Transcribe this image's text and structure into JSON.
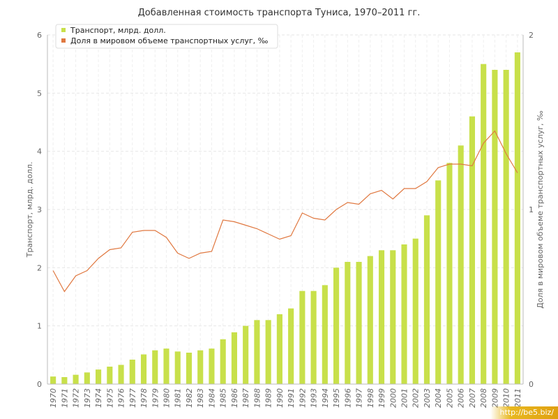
{
  "chart_data": {
    "type": "bar",
    "title": "Добавленная стоимость транспорта Туниса, 1970–2011 гг.",
    "ylabel": "Транспорт, млрд. долл.",
    "ylabel_right": "Доля в мировом объеме транспортных услуг, ‰",
    "ylim": [
      0,
      6
    ],
    "ylim_right": [
      0,
      2
    ],
    "yticks": [
      "0",
      "1",
      "2",
      "3",
      "4",
      "5",
      "6"
    ],
    "yticks_right": [
      "0",
      "1",
      "2"
    ],
    "grid": true,
    "legend_position": "top-left",
    "categories": [
      "1970",
      "1971",
      "1972",
      "1973",
      "1974",
      "1975",
      "1976",
      "1977",
      "1978",
      "1979",
      "1980",
      "1981",
      "1982",
      "1983",
      "1984",
      "1985",
      "1986",
      "1987",
      "1988",
      "1989",
      "1990",
      "1991",
      "1992",
      "1993",
      "1994",
      "1995",
      "1996",
      "1997",
      "1998",
      "1999",
      "2000",
      "2001",
      "2002",
      "2003",
      "2004",
      "2005",
      "2006",
      "2007",
      "2008",
      "2009",
      "2010",
      "2011"
    ],
    "series": [
      {
        "name": "Транспорт, млрд. долл.",
        "type": "bar",
        "axis": "left",
        "color": "#c8e04a",
        "values": [
          0.13,
          0.12,
          0.16,
          0.2,
          0.25,
          0.3,
          0.33,
          0.42,
          0.51,
          0.58,
          0.61,
          0.56,
          0.54,
          0.58,
          0.61,
          0.77,
          0.89,
          1.0,
          1.1,
          1.1,
          1.2,
          1.3,
          1.6,
          1.6,
          1.7,
          2.0,
          2.1,
          2.1,
          2.2,
          2.3,
          2.3,
          2.4,
          2.5,
          2.9,
          3.5,
          3.8,
          4.1,
          4.6,
          5.5,
          5.4,
          5.4,
          5.7
        ]
      },
      {
        "name": "Доля в мировом объеме транспортных услуг, ‰",
        "type": "line",
        "axis": "right",
        "color": "#e07840",
        "values": [
          0.65,
          0.53,
          0.62,
          0.65,
          0.72,
          0.77,
          0.78,
          0.87,
          0.88,
          0.88,
          0.84,
          0.75,
          0.72,
          0.75,
          0.76,
          0.94,
          0.93,
          0.91,
          0.89,
          0.86,
          0.83,
          0.85,
          0.98,
          0.95,
          0.94,
          1.0,
          1.04,
          1.03,
          1.09,
          1.11,
          1.06,
          1.12,
          1.12,
          1.16,
          1.24,
          1.26,
          1.26,
          1.25,
          1.38,
          1.45,
          1.32,
          1.21
        ]
      }
    ]
  },
  "watermark": "http://be5.biz/"
}
